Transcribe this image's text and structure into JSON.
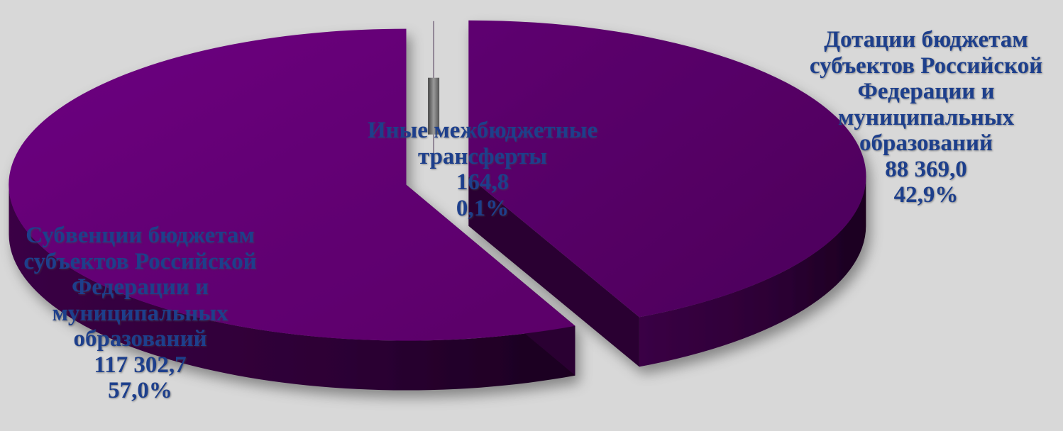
{
  "chart_data": {
    "type": "pie",
    "slices": [
      {
        "label": "Дотации бюджетам субъектов Российской Федерации и муниципальных образований",
        "label_lines": [
          "Дотации бюджетам",
          "субъектов Российской",
          "Федерации и",
          "муниципальных",
          "образований"
        ],
        "value": 88369.0,
        "value_text": "88 369,0",
        "percent": 42.9,
        "percent_text": "42,9%"
      },
      {
        "label": "Иные межбюджетные трансферты",
        "label_lines": [
          "Иные межбюджетные",
          "трансферты"
        ],
        "value": 164.8,
        "value_text": "164,8",
        "percent": 0.1,
        "percent_text": "0,1%"
      },
      {
        "label": "Субвенции бюджетам субъектов Российской Федерации и муниципальных образований",
        "label_lines": [
          "Субвенции бюджетам",
          "субъектов Российской",
          "Федерации и",
          "муниципальных",
          "образований"
        ],
        "value": 117302.7,
        "value_text": "117 302,7",
        "percent": 57.0,
        "percent_text": "57,0%"
      }
    ],
    "style": "3d-exploded",
    "colors": {
      "top": "#5f006e",
      "top_light": "#7a1090",
      "side": "#37003f",
      "side_dark": "#1c0020",
      "label_text": "#1d3f8c",
      "background": "#d8d8d8"
    }
  }
}
